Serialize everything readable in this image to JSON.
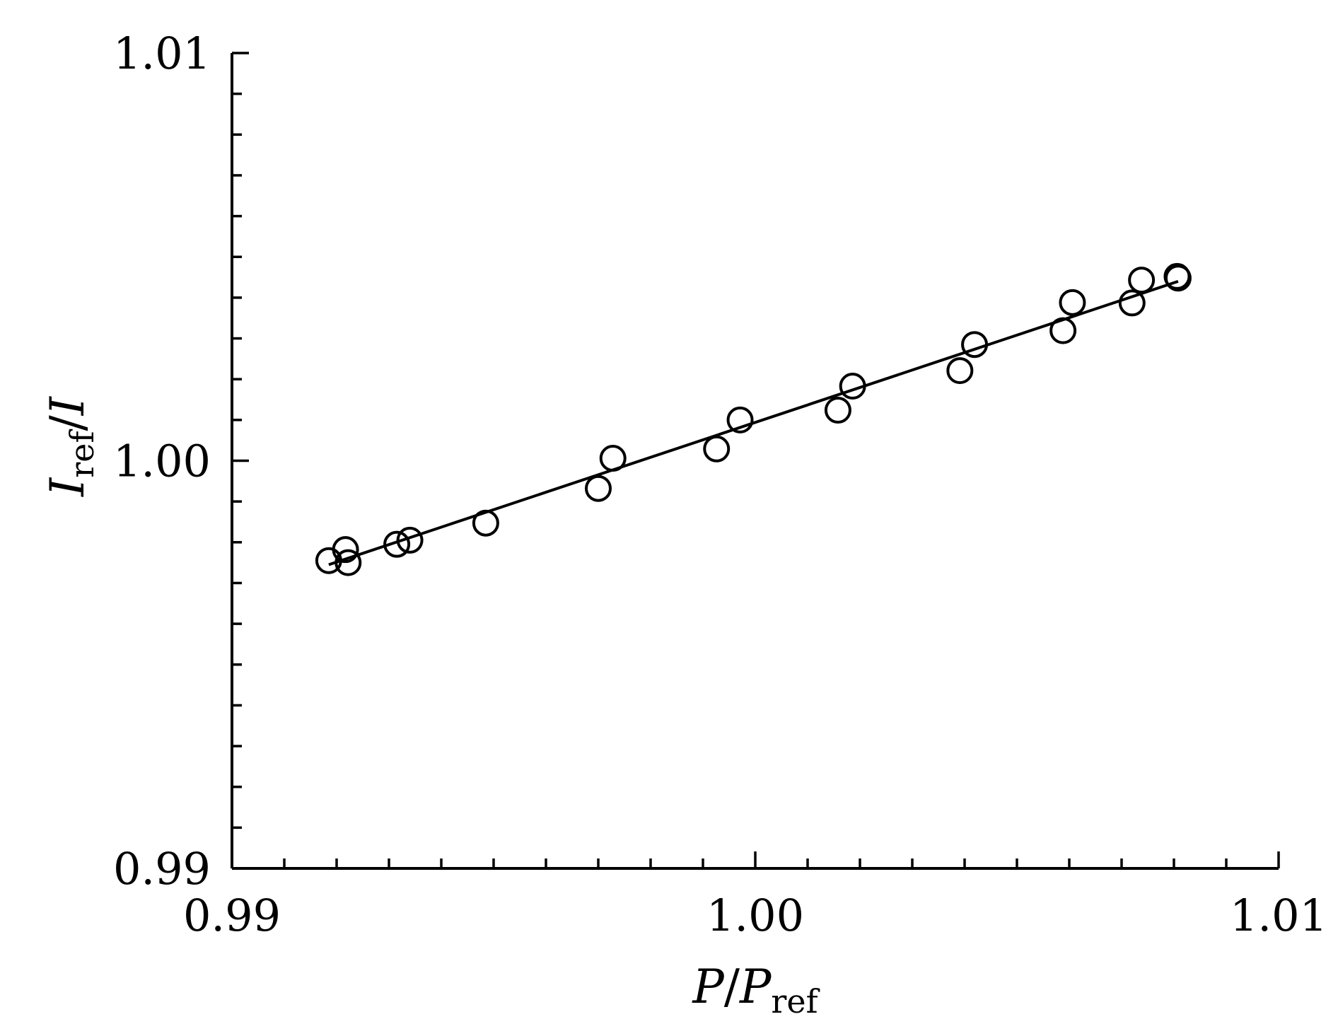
{
  "chart_data": {
    "type": "scatter",
    "title": "",
    "xlabel": "P/Pref",
    "ylabel": "Iref/I",
    "xlabel_parts": {
      "main": "P",
      "slash": "/",
      "denom": "P",
      "sub": "ref"
    },
    "ylabel_parts": {
      "main": "I",
      "sub": "ref",
      "slash": "/",
      "denom": "I"
    },
    "xlim": [
      0.99,
      1.01
    ],
    "ylim": [
      0.99,
      1.01
    ],
    "x_major_ticks": [
      0.99,
      1.0,
      1.01
    ],
    "x_tick_labels": [
      "0.99",
      "1.00",
      "1.01"
    ],
    "y_major_ticks": [
      0.99,
      1.0,
      1.01
    ],
    "y_tick_labels": [
      "0.99",
      "1.00",
      "1.01"
    ],
    "minor_tick_step": 0.001,
    "grid": false,
    "series": [
      {
        "marker": "open-circle",
        "x": [
          0.99185,
          0.99217,
          0.99222,
          0.99315,
          0.9934,
          0.99485,
          0.997,
          0.99728,
          0.99926,
          0.99971,
          1.00158,
          1.00186,
          1.00391,
          1.00419,
          1.00588,
          1.00606,
          1.0072,
          1.00738,
          1.00806,
          1.00808
        ],
        "y": [
          0.99755,
          0.99782,
          0.9975,
          0.99795,
          0.99805,
          0.99847,
          0.99932,
          1.00006,
          1.00029,
          1.001,
          1.00124,
          1.00183,
          1.00221,
          1.00285,
          1.00319,
          1.00388,
          1.00387,
          1.00443,
          1.00452,
          1.00448
        ]
      }
    ],
    "fit_line": {
      "x": [
        0.99185,
        1.00808
      ],
      "y": [
        0.99745,
        1.0044
      ]
    }
  }
}
